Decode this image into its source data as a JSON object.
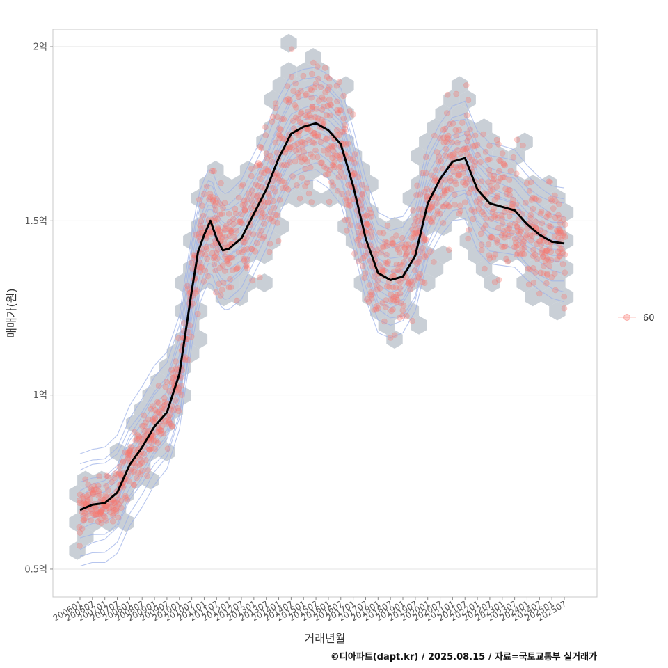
{
  "chart_data": {
    "type": "scatter",
    "xlabel": "거래년월",
    "ylabel": "매매가(원)",
    "caption": "©디아파트(dapt.kr) / 2025.08.15 / 자료=국토교통부 실거래가",
    "x_tick_labels": [
      "200601",
      "200607",
      "200701",
      "200707",
      "200801",
      "200807",
      "200901",
      "200907",
      "201001",
      "201007",
      "201101",
      "201107",
      "201201",
      "201207",
      "201301",
      "201307",
      "201401",
      "201407",
      "201501",
      "201507",
      "201601",
      "201607",
      "201701",
      "201707",
      "201801",
      "201807",
      "201901",
      "201907",
      "202001",
      "202007",
      "202101",
      "202107",
      "202201",
      "202207",
      "202301",
      "202307",
      "202401",
      "202407",
      "202501",
      "202507"
    ],
    "y_ticks": [
      {
        "value": 50000000,
        "label": "0.5억"
      },
      {
        "value": 100000000,
        "label": "1억"
      },
      {
        "value": 150000000,
        "label": "1.5억"
      },
      {
        "value": 200000000,
        "label": "2억"
      }
    ],
    "ylim": [
      42000000,
      205000000
    ],
    "series": [
      {
        "name": "60",
        "color": "#f8766d",
        "trend_color": "#000000",
        "trend_x": [
          "2006-01",
          "2006-07",
          "2007-01",
          "2007-07",
          "2008-01",
          "2008-07",
          "2009-01",
          "2009-07",
          "2010-01",
          "2010-04",
          "2010-07",
          "2010-10",
          "2011-01",
          "2011-04",
          "2011-07",
          "2011-10",
          "2012-01",
          "2012-07",
          "2013-01",
          "2013-07",
          "2014-01",
          "2014-07",
          "2015-01",
          "2015-07",
          "2016-01",
          "2016-07",
          "2017-01",
          "2017-07",
          "2018-01",
          "2018-07",
          "2019-01",
          "2019-07",
          "2020-01",
          "2020-07",
          "2021-01",
          "2021-07",
          "2022-01",
          "2022-07",
          "2023-01",
          "2023-07",
          "2024-01",
          "2024-07",
          "2025-01",
          "2025-07"
        ],
        "trend_y": [
          67000000,
          68500000,
          69000000,
          72000000,
          80000000,
          85000000,
          91000000,
          95000000,
          106000000,
          118000000,
          130000000,
          141000000,
          146000000,
          150000000,
          145000000,
          141500000,
          142000000,
          145000000,
          152000000,
          159000000,
          168000000,
          175000000,
          177000000,
          178000000,
          176000000,
          172000000,
          160000000,
          145000000,
          135000000,
          133000000,
          134000000,
          140000000,
          155000000,
          162000000,
          167000000,
          168000000,
          159000000,
          155000000,
          154000000,
          153000000,
          149000000,
          146000000,
          144000000,
          143500000
        ]
      }
    ],
    "grid": true,
    "legend_position": "right"
  }
}
